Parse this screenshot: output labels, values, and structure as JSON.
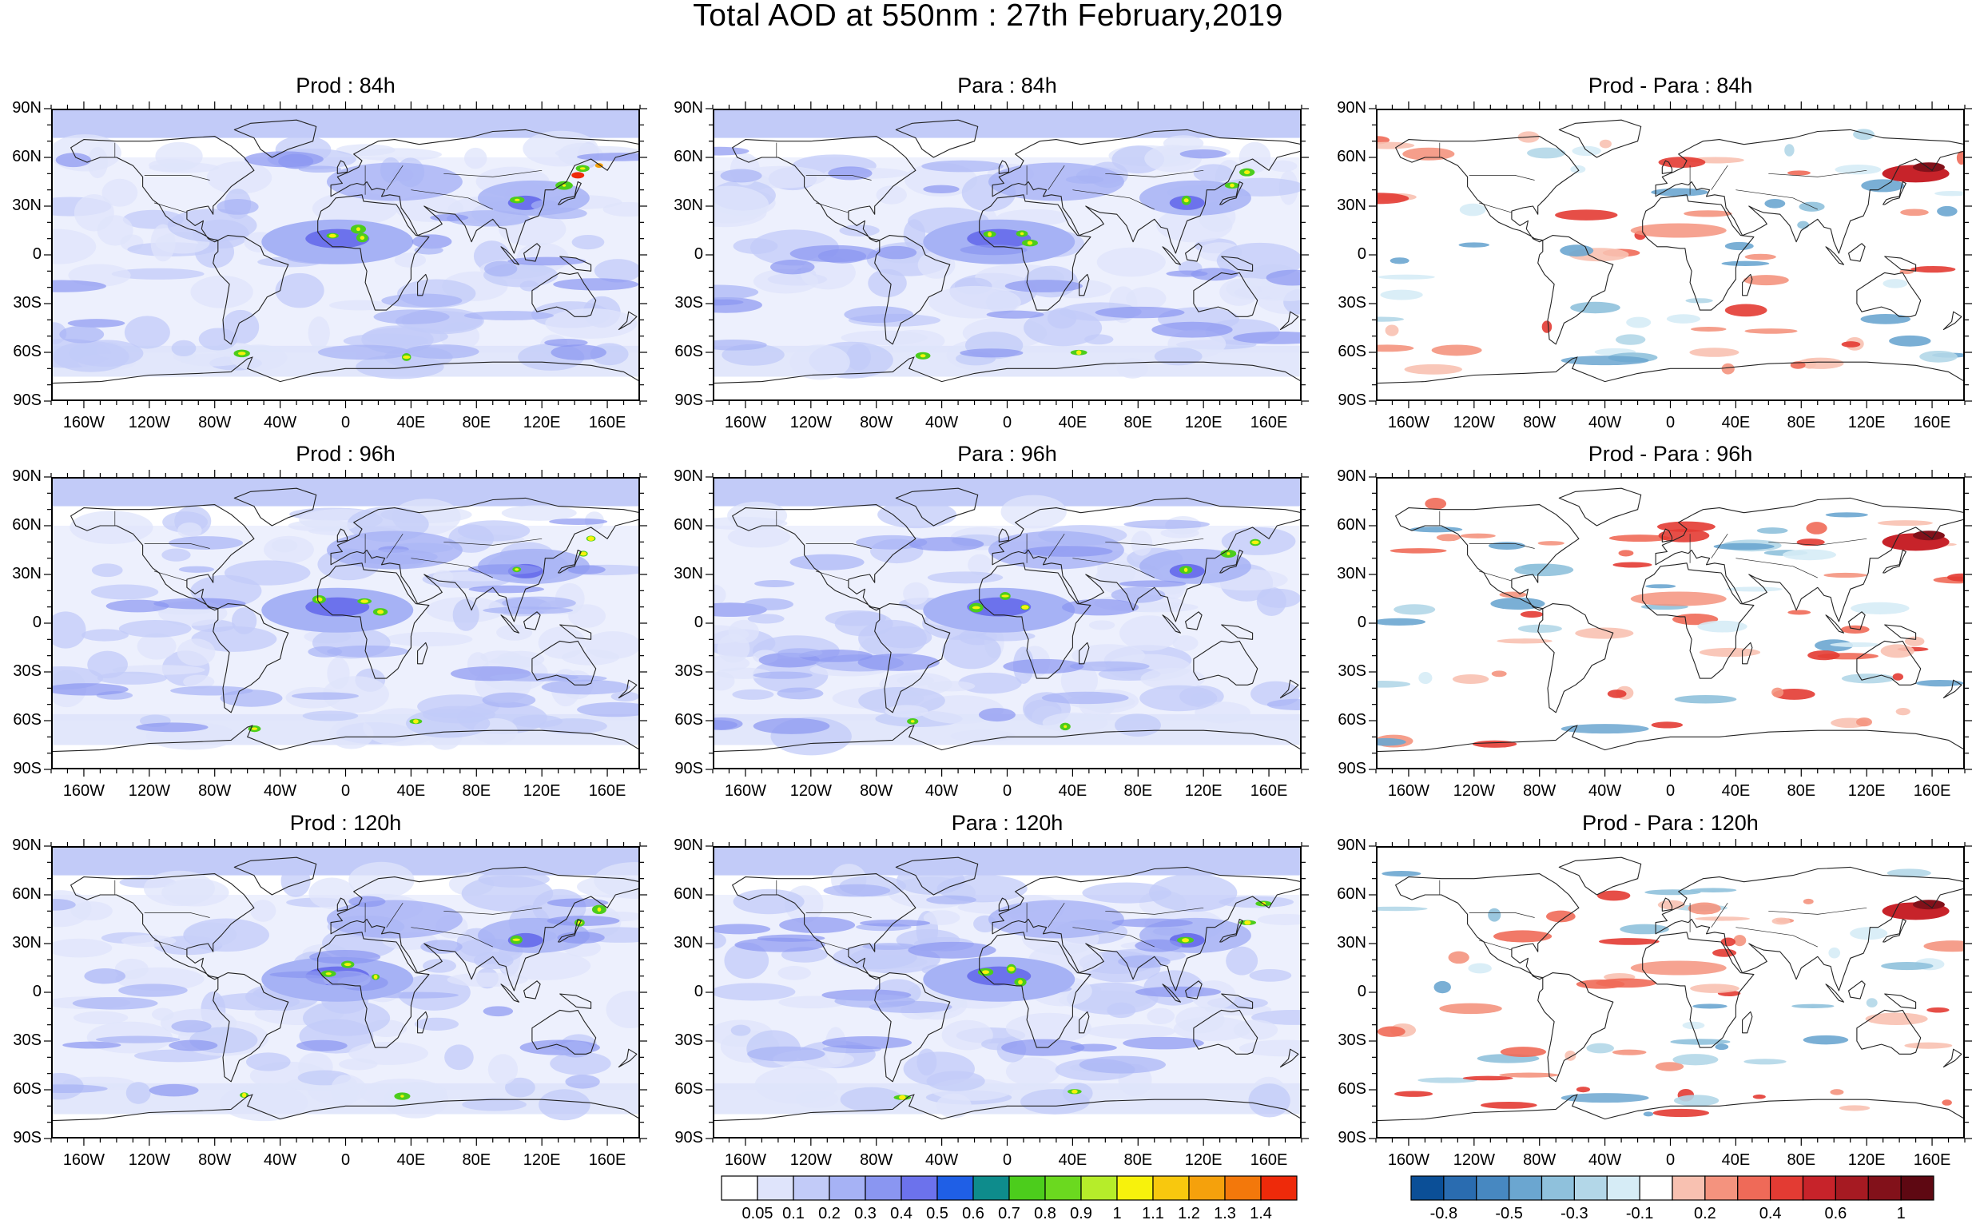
{
  "figure": {
    "title": "Total AOD at 550nm : 27th February,2019"
  },
  "panels": [
    {
      "title": "Prod : 84h",
      "kind": "aod",
      "variant": 0
    },
    {
      "title": "Para : 84h",
      "kind": "aod",
      "variant": 1
    },
    {
      "title": "Prod - Para : 84h",
      "kind": "diff",
      "variant": 2
    },
    {
      "title": "Prod : 96h",
      "kind": "aod",
      "variant": 3
    },
    {
      "title": "Para : 96h",
      "kind": "aod",
      "variant": 4
    },
    {
      "title": "Prod - Para : 96h",
      "kind": "diff",
      "variant": 5
    },
    {
      "title": "Prod : 120h",
      "kind": "aod",
      "variant": 6
    },
    {
      "title": "Para : 120h",
      "kind": "aod",
      "variant": 7
    },
    {
      "title": "Prod - Para : 120h",
      "kind": "diff",
      "variant": 8
    }
  ],
  "axes": {
    "lat_labels": [
      "90N",
      "60N",
      "30N",
      "0",
      "30S",
      "60S",
      "90S"
    ],
    "lon_labels": [
      "160W",
      "120W",
      "80W",
      "40W",
      "0",
      "40E",
      "80E",
      "120E",
      "160E"
    ]
  },
  "legends": {
    "aod": {
      "labels": [
        "0.05",
        "0.1",
        "0.2",
        "0.3",
        "0.4",
        "0.5",
        "0.6",
        "0.7",
        "0.8",
        "0.9",
        "1",
        "1.1",
        "1.2",
        "1.3",
        "1.4"
      ],
      "colors": [
        "#ffffff",
        "#dfe4fb",
        "#c2cbf8",
        "#a6b2f5",
        "#8a96f1",
        "#6c72ec",
        "#1f5fe6",
        "#0e8c8c",
        "#4ccd1c",
        "#6bd91f",
        "#b6ed2a",
        "#f7f20c",
        "#f8c80e",
        "#f5a10c",
        "#f3780b",
        "#ee2a0a"
      ]
    },
    "diff": {
      "labels": [
        "-0.8",
        "",
        "-0.5",
        "",
        "-0.3",
        "",
        "-0.1",
        "",
        "0.2",
        "",
        "0.4",
        "",
        "0.6",
        "",
        "1"
      ],
      "colors": [
        "#0b4f97",
        "#2a6cb0",
        "#4788c1",
        "#6ba6d0",
        "#8fc1dc",
        "#b3d7e8",
        "#d6ecf6",
        "#ffffff",
        "#f8c1b1",
        "#f4937e",
        "#ef6a58",
        "#e33b33",
        "#c7232a",
        "#a61a22",
        "#82111a",
        "#5e0812"
      ]
    }
  }
}
